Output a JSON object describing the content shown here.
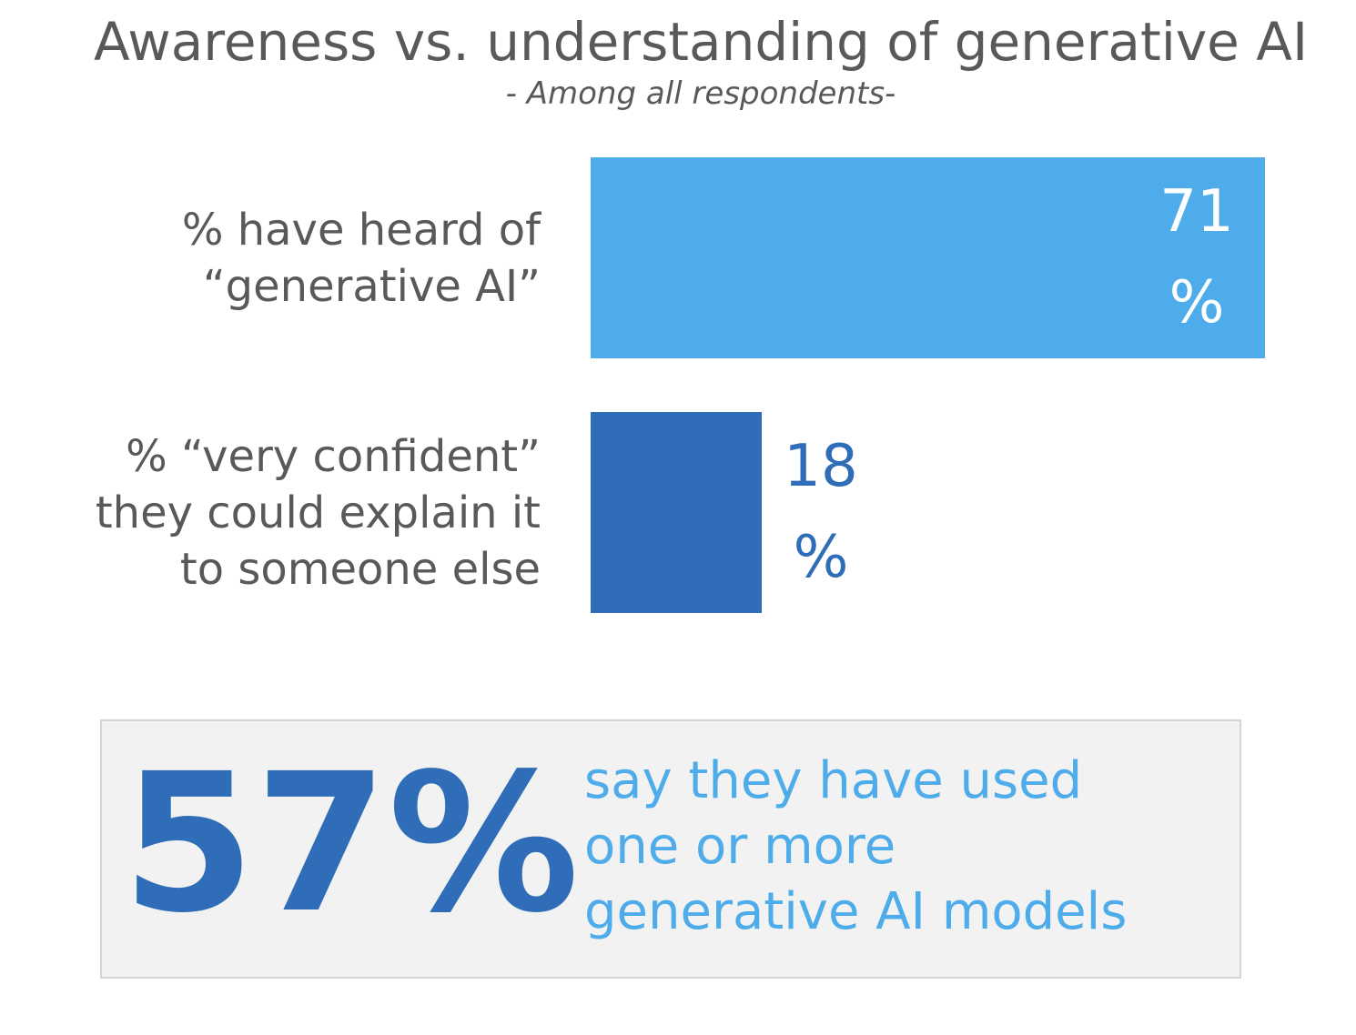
{
  "chart_data": {
    "type": "bar",
    "orientation": "horizontal",
    "title": "Awareness vs. understanding of generative AI",
    "subtitle": "- Among all respondents-",
    "xlim": [
      0,
      71
    ],
    "categories": [
      [
        "% have heard of",
        "“generative AI”"
      ],
      [
        "% “very confident”",
        "they could explain it",
        "to someone else"
      ]
    ],
    "values": [
      71,
      18
    ],
    "value_labels": [
      [
        "71",
        "%"
      ],
      [
        "18",
        "%"
      ]
    ],
    "colors": [
      "#4facea",
      "#2f6db8"
    ],
    "value_label_colors": [
      "#ffffff",
      "#2f6db8"
    ],
    "value_label_position": [
      "inside",
      "outside"
    ]
  },
  "callout": {
    "value": "57%",
    "description": [
      "say they have used",
      "one or more",
      "generative AI models"
    ],
    "value_color": "#2f6db8",
    "description_color": "#4facea"
  }
}
